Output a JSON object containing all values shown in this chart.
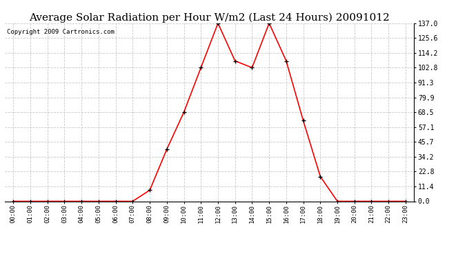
{
  "title": "Average Solar Radiation per Hour W/m2 (Last 24 Hours) 20091012",
  "copyright": "Copyright 2009 Cartronics.com",
  "hours": [
    "00:00",
    "01:00",
    "02:00",
    "03:00",
    "04:00",
    "05:00",
    "06:00",
    "07:00",
    "08:00",
    "09:00",
    "10:00",
    "11:00",
    "12:00",
    "13:00",
    "14:00",
    "15:00",
    "16:00",
    "17:00",
    "18:00",
    "19:00",
    "20:00",
    "21:00",
    "22:00",
    "23:00"
  ],
  "values": [
    0,
    0,
    0,
    0,
    0,
    0,
    0,
    0,
    8.5,
    40.0,
    68.5,
    102.8,
    137.0,
    108.0,
    102.8,
    137.0,
    108.0,
    62.0,
    19.0,
    0,
    0,
    0,
    0,
    0
  ],
  "line_color": "#ff0000",
  "marker_color": "#000000",
  "background_color": "#ffffff",
  "grid_color": "#c8c8c8",
  "ymax": 137.0,
  "yticks": [
    0.0,
    11.4,
    22.8,
    34.2,
    45.7,
    57.1,
    68.5,
    79.9,
    91.3,
    102.8,
    114.2,
    125.6,
    137.0
  ],
  "title_fontsize": 11,
  "copyright_fontsize": 6.5,
  "tick_fontsize": 6.5,
  "ytick_fontsize": 7
}
